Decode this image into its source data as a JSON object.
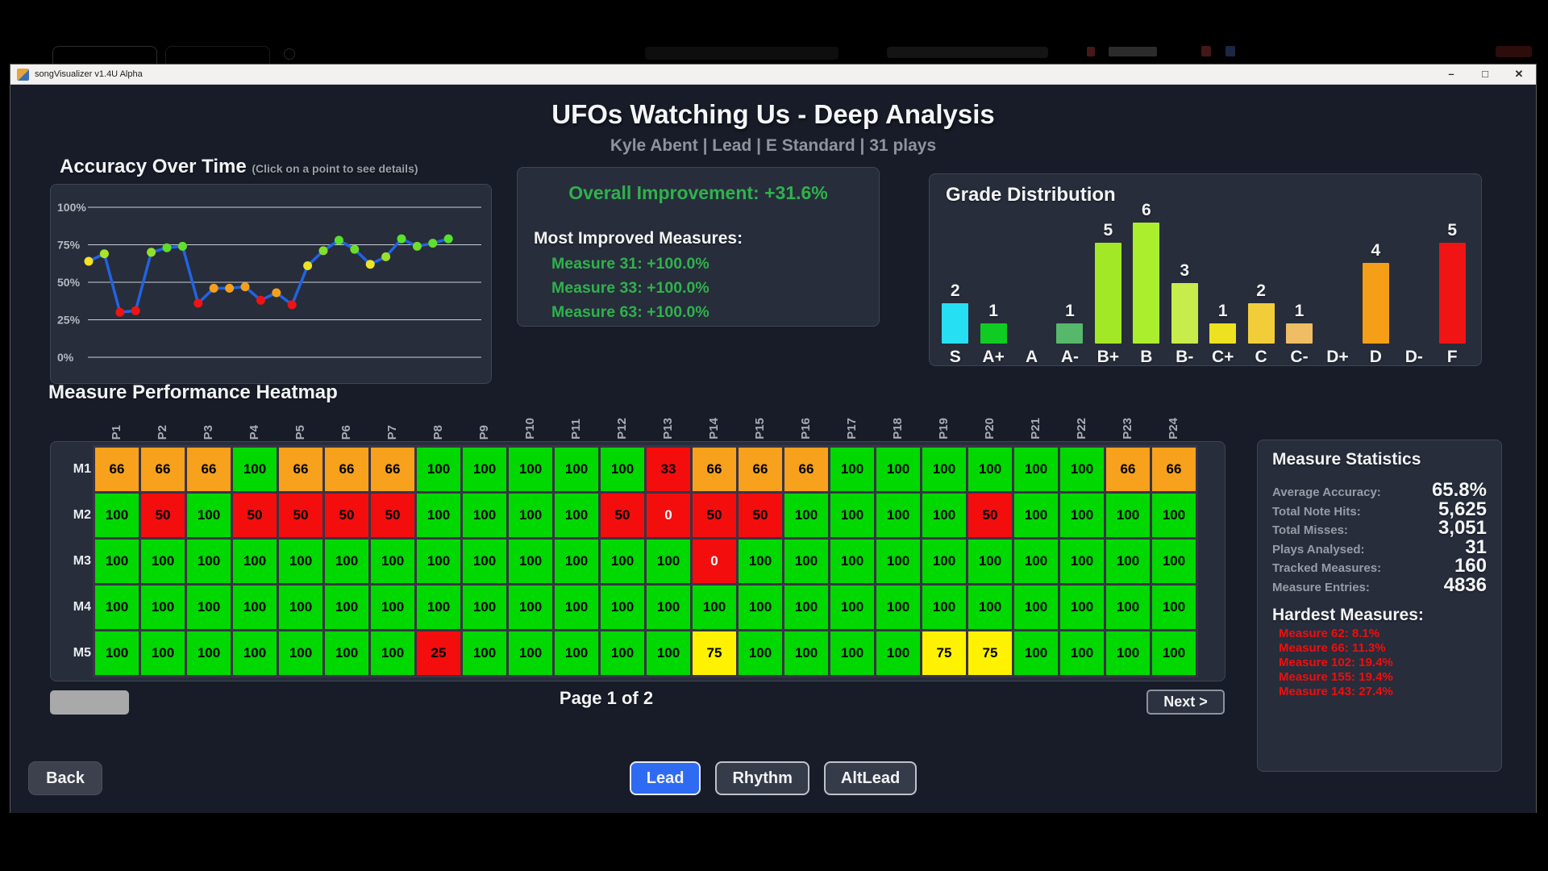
{
  "titlebar": {
    "title": "songVisualizer v1.4U Alpha",
    "window_controls": {
      "minimize": "–",
      "maximize": "□",
      "close": "✕"
    }
  },
  "header": {
    "title": "UFOs Watching Us - Deep Analysis",
    "subtitle": "Kyle Abent | Lead | E Standard | 31 plays"
  },
  "accuracy": {
    "title": "Accuracy Over Time",
    "hint": "(Click on a point to see details)"
  },
  "improvement": {
    "headline": "Overall Improvement: +31.6%",
    "subheading": "Most Improved Measures:",
    "measures": [
      "Measure 31: +100.0%",
      "Measure 33: +100.0%",
      "Measure 63: +100.0%"
    ],
    "accent_color": "#2fb24c"
  },
  "grade": {
    "title": "Grade Distribution"
  },
  "heatmap_section": {
    "title": "Measure Performance Heatmap"
  },
  "pagination": {
    "page_label": "Page 1 of 2",
    "next_label": "Next >"
  },
  "stats": {
    "title": "Measure Statistics",
    "rows": [
      {
        "label": "Average Accuracy:",
        "value": "65.8%"
      },
      {
        "label": "Total Note Hits:",
        "value": "5,625"
      },
      {
        "label": "Total Misses:",
        "value": "3,051"
      },
      {
        "label": "Plays Analysed:",
        "value": "31"
      },
      {
        "label": "Tracked Measures:",
        "value": "160"
      },
      {
        "label": "Measure Entries:",
        "value": "4836"
      }
    ],
    "hardest_title": "Hardest Measures:",
    "hardest": [
      "Measure 62: 8.1%",
      "Measure 66: 11.3%",
      "Measure 102: 19.4%",
      "Measure 155: 19.4%",
      "Measure 143: 27.4%"
    ],
    "hardest_color": "#f00d0d"
  },
  "footer": {
    "back_label": "Back",
    "tabs": [
      {
        "label": "Lead",
        "active": true
      },
      {
        "label": "Rhythm",
        "active": false
      },
      {
        "label": "AltLead",
        "active": false
      }
    ],
    "active_color": "#2e6bf2"
  },
  "chart_data": [
    {
      "type": "line",
      "title": "Accuracy Over Time",
      "ylabel": "Accuracy",
      "yticks": [
        "100%",
        "75%",
        "50%",
        "25%",
        "0%"
      ],
      "ylim": [
        0,
        100
      ],
      "grid": true,
      "line_color": "#2263e0",
      "values": [
        64,
        69,
        30,
        31,
        70,
        73,
        74,
        36,
        46,
        46,
        47,
        38,
        43,
        35,
        61,
        71,
        78,
        72,
        62,
        67,
        79,
        74,
        76,
        79
      ],
      "point_colors": [
        "#f2e324",
        "#a9e42a",
        "#f01313",
        "#f01313",
        "#93e02a",
        "#5fdc2a",
        "#60e02a",
        "#f01313",
        "#f5a019",
        "#f5a019",
        "#f5a019",
        "#f01313",
        "#f5a019",
        "#f01313",
        "#ece41f",
        "#86dd2a",
        "#54e029",
        "#6bdc2a",
        "#efe422",
        "#9ae02a",
        "#57e329",
        "#70dd2a",
        "#5fe02a",
        "#55e329"
      ]
    },
    {
      "type": "bar",
      "title": "Grade Distribution",
      "categories": [
        "S",
        "A+",
        "A",
        "A-",
        "B+",
        "B",
        "B-",
        "C+",
        "C",
        "C-",
        "D+",
        "D",
        "D-",
        "F"
      ],
      "values": [
        2,
        1,
        0,
        1,
        5,
        6,
        3,
        1,
        2,
        1,
        0,
        4,
        0,
        5
      ],
      "bar_colors": [
        "#26dff2",
        "#10cc22",
        "#10cc22",
        "#55b86a",
        "#a2e827",
        "#abee2e",
        "#c6ed4b",
        "#eee120",
        "#f2cd3a",
        "#eebd64",
        "#f59e17",
        "#f59e17",
        "#f59e17",
        "#f01414"
      ],
      "ylim": [
        0,
        6
      ],
      "legend": "none"
    },
    {
      "type": "heatmap",
      "title": "Measure Performance Heatmap",
      "columns": [
        "P1",
        "P2",
        "P3",
        "P4",
        "P5",
        "P6",
        "P7",
        "P8",
        "P9",
        "P10",
        "P11",
        "P12",
        "P13",
        "P14",
        "P15",
        "P16",
        "P17",
        "P18",
        "P19",
        "P20",
        "P21",
        "P22",
        "P23",
        "P24"
      ],
      "row_labels": [
        "M1",
        "M2",
        "M3",
        "M4",
        "M5"
      ],
      "values": [
        [
          66,
          66,
          66,
          100,
          66,
          66,
          66,
          100,
          100,
          100,
          100,
          100,
          33,
          66,
          66,
          66,
          100,
          100,
          100,
          100,
          100,
          100,
          66,
          66
        ],
        [
          100,
          50,
          100,
          50,
          50,
          50,
          50,
          100,
          100,
          100,
          100,
          50,
          0,
          50,
          50,
          100,
          100,
          100,
          100,
          50,
          100,
          100,
          100,
          100
        ],
        [
          100,
          100,
          100,
          100,
          100,
          100,
          100,
          100,
          100,
          100,
          100,
          100,
          100,
          0,
          100,
          100,
          100,
          100,
          100,
          100,
          100,
          100,
          100,
          100
        ],
        [
          100,
          100,
          100,
          100,
          100,
          100,
          100,
          100,
          100,
          100,
          100,
          100,
          100,
          100,
          100,
          100,
          100,
          100,
          100,
          100,
          100,
          100,
          100,
          100
        ],
        [
          100,
          100,
          100,
          100,
          100,
          100,
          100,
          25,
          100,
          100,
          100,
          100,
          100,
          75,
          100,
          100,
          100,
          100,
          75,
          75,
          100,
          100,
          100,
          100
        ]
      ],
      "cell_colors": {
        "green": "#00d800",
        "yellow": "#fef200",
        "orange": "#f7a11c",
        "red": "#f40d0d"
      }
    }
  ]
}
